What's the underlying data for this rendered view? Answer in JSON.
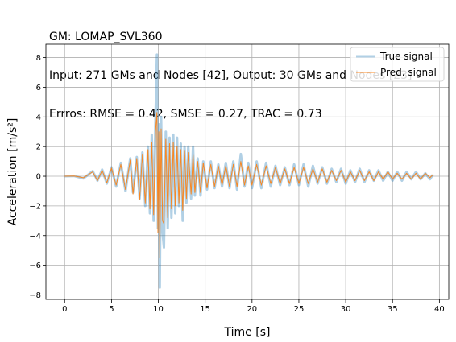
{
  "chart_data": {
    "type": "line",
    "title_lines": [
      "GM: LOMAP_SVL360",
      "Input: 271 GMs and Nodes [42], Output: 30 GMs and Nodes [23]",
      "Errros: RMSE = 0.42, SMSE = 0.27, TRAC = 0.73"
    ],
    "xlabel": "Time [s]",
    "ylabel": "Acceleration [m/s²]",
    "xlim": [
      -2,
      41
    ],
    "ylim": [
      -8.3,
      8.9
    ],
    "xticks": [
      0,
      5,
      10,
      15,
      20,
      25,
      30,
      35,
      40
    ],
    "yticks": [
      -8,
      -6,
      -4,
      -2,
      0,
      2,
      4,
      6,
      8
    ],
    "grid": true,
    "legend_position": "top-right",
    "series": [
      {
        "name": "True signal",
        "color": "#1f77b4",
        "points": [
          [
            0,
            0
          ],
          [
            1,
            0.02
          ],
          [
            2,
            -0.15
          ],
          [
            3,
            0.35
          ],
          [
            3.5,
            -0.3
          ],
          [
            4,
            0.45
          ],
          [
            4.5,
            -0.5
          ],
          [
            5,
            0.6
          ],
          [
            5.5,
            -0.7
          ],
          [
            6,
            0.9
          ],
          [
            6.5,
            -1.0
          ],
          [
            7,
            1.2
          ],
          [
            7.3,
            -1.1
          ],
          [
            7.7,
            1.3
          ],
          [
            8,
            -1.5
          ],
          [
            8.3,
            1.6
          ],
          [
            8.6,
            -2.0
          ],
          [
            8.9,
            2.0
          ],
          [
            9.1,
            -2.5
          ],
          [
            9.3,
            2.8
          ],
          [
            9.5,
            -3.0
          ],
          [
            9.7,
            3.8
          ],
          [
            9.85,
            8.2
          ],
          [
            9.95,
            -3.5
          ],
          [
            10.05,
            3.5
          ],
          [
            10.15,
            -7.5
          ],
          [
            10.3,
            4.0
          ],
          [
            10.45,
            -3.8
          ],
          [
            10.6,
            -4.8
          ],
          [
            10.8,
            3.0
          ],
          [
            11,
            -3.5
          ],
          [
            11.2,
            2.6
          ],
          [
            11.4,
            -2.8
          ],
          [
            11.6,
            2.8
          ],
          [
            11.8,
            -2.5
          ],
          [
            12,
            2.6
          ],
          [
            12.2,
            -2.0
          ],
          [
            12.4,
            2.2
          ],
          [
            12.6,
            -3.0
          ],
          [
            12.8,
            2.0
          ],
          [
            13,
            -1.8
          ],
          [
            13.2,
            2.0
          ],
          [
            13.5,
            -1.5
          ],
          [
            13.7,
            2.0
          ],
          [
            13.9,
            -1.3
          ],
          [
            14.2,
            1.2
          ],
          [
            14.5,
            -1.3
          ],
          [
            14.8,
            1.0
          ],
          [
            15.2,
            -0.9
          ],
          [
            15.6,
            1.0
          ],
          [
            16,
            -0.8
          ],
          [
            16.4,
            0.8
          ],
          [
            16.8,
            -0.7
          ],
          [
            17.2,
            0.9
          ],
          [
            17.6,
            -0.8
          ],
          [
            18,
            1.0
          ],
          [
            18.4,
            -0.9
          ],
          [
            18.8,
            1.5
          ],
          [
            19.2,
            -0.7
          ],
          [
            19.6,
            0.9
          ],
          [
            20,
            -0.8
          ],
          [
            20.5,
            1.0
          ],
          [
            21,
            -0.8
          ],
          [
            21.5,
            0.9
          ],
          [
            22,
            -0.7
          ],
          [
            22.5,
            0.7
          ],
          [
            23,
            -0.6
          ],
          [
            23.5,
            0.6
          ],
          [
            24,
            -0.6
          ],
          [
            24.5,
            0.8
          ],
          [
            25,
            -0.6
          ],
          [
            25.5,
            0.8
          ],
          [
            26,
            -0.7
          ],
          [
            26.5,
            0.7
          ],
          [
            27,
            -0.5
          ],
          [
            27.5,
            0.6
          ],
          [
            28,
            -0.5
          ],
          [
            28.5,
            0.5
          ],
          [
            29,
            -0.4
          ],
          [
            29.5,
            0.5
          ],
          [
            30,
            -0.5
          ],
          [
            30.5,
            0.4
          ],
          [
            31,
            -0.4
          ],
          [
            31.5,
            0.5
          ],
          [
            32,
            -0.4
          ],
          [
            32.5,
            0.4
          ],
          [
            33,
            -0.3
          ],
          [
            33.5,
            0.4
          ],
          [
            34,
            -0.3
          ],
          [
            34.5,
            0.3
          ],
          [
            35,
            -0.3
          ],
          [
            35.5,
            0.3
          ],
          [
            36,
            -0.3
          ],
          [
            36.5,
            0.3
          ],
          [
            37,
            -0.2
          ],
          [
            37.5,
            0.3
          ],
          [
            38,
            -0.2
          ],
          [
            38.5,
            0.2
          ],
          [
            39,
            -0.2
          ],
          [
            39.3,
            0.1
          ]
        ]
      },
      {
        "name": "Pred. signal",
        "color": "#ff7f0e",
        "points": [
          [
            0,
            0
          ],
          [
            1,
            0.02
          ],
          [
            2,
            -0.1
          ],
          [
            3,
            0.3
          ],
          [
            3.5,
            -0.3
          ],
          [
            4,
            0.4
          ],
          [
            4.5,
            -0.45
          ],
          [
            5,
            0.55
          ],
          [
            5.5,
            -0.6
          ],
          [
            6,
            0.8
          ],
          [
            6.5,
            -0.9
          ],
          [
            7,
            1.1
          ],
          [
            7.3,
            -1.2
          ],
          [
            7.7,
            1.2
          ],
          [
            8,
            -1.6
          ],
          [
            8.3,
            1.5
          ],
          [
            8.6,
            -1.8
          ],
          [
            8.9,
            1.8
          ],
          [
            9.1,
            -2.2
          ],
          [
            9.3,
            2.3
          ],
          [
            9.5,
            -2.6
          ],
          [
            9.7,
            3.0
          ],
          [
            9.85,
            4.3
          ],
          [
            9.95,
            -3.8
          ],
          [
            10.05,
            3.0
          ],
          [
            10.15,
            -5.5
          ],
          [
            10.3,
            3.2
          ],
          [
            10.45,
            -3.0
          ],
          [
            10.6,
            -3.2
          ],
          [
            10.8,
            2.5
          ],
          [
            11,
            -2.8
          ],
          [
            11.2,
            2.2
          ],
          [
            11.4,
            -2.2
          ],
          [
            11.6,
            2.3
          ],
          [
            11.8,
            -2.0
          ],
          [
            12,
            2.0
          ],
          [
            12.2,
            -1.8
          ],
          [
            12.4,
            1.8
          ],
          [
            12.6,
            -2.3
          ],
          [
            12.8,
            1.7
          ],
          [
            13,
            -1.5
          ],
          [
            13.2,
            1.6
          ],
          [
            13.5,
            -1.2
          ],
          [
            13.7,
            1.5
          ],
          [
            13.9,
            -1.1
          ],
          [
            14.2,
            1.0
          ],
          [
            14.5,
            -1.1
          ],
          [
            14.8,
            0.9
          ],
          [
            15.2,
            -0.8
          ],
          [
            15.6,
            0.8
          ],
          [
            16,
            -0.7
          ],
          [
            16.4,
            0.7
          ],
          [
            16.8,
            -0.6
          ],
          [
            17.2,
            0.7
          ],
          [
            17.6,
            -0.7
          ],
          [
            18,
            0.8
          ],
          [
            18.4,
            -0.7
          ],
          [
            18.8,
            1.0
          ],
          [
            19.2,
            -0.6
          ],
          [
            19.6,
            0.7
          ],
          [
            20,
            -0.6
          ],
          [
            20.5,
            0.8
          ],
          [
            21,
            -0.6
          ],
          [
            21.5,
            0.7
          ],
          [
            22,
            -0.5
          ],
          [
            22.5,
            0.6
          ],
          [
            23,
            -0.5
          ],
          [
            23.5,
            0.5
          ],
          [
            24,
            -0.5
          ],
          [
            24.5,
            0.6
          ],
          [
            25,
            -0.5
          ],
          [
            25.5,
            0.6
          ],
          [
            26,
            -0.5
          ],
          [
            26.5,
            0.5
          ],
          [
            27,
            -0.4
          ],
          [
            27.5,
            0.5
          ],
          [
            28,
            -0.4
          ],
          [
            28.5,
            0.4
          ],
          [
            29,
            -0.3
          ],
          [
            29.5,
            0.4
          ],
          [
            30,
            -0.4
          ],
          [
            30.5,
            0.3
          ],
          [
            31,
            -0.3
          ],
          [
            31.5,
            0.4
          ],
          [
            32,
            -0.3
          ],
          [
            32.5,
            0.3
          ],
          [
            33,
            -0.3
          ],
          [
            33.5,
            0.3
          ],
          [
            34,
            -0.2
          ],
          [
            34.5,
            0.3
          ],
          [
            35,
            -0.2
          ],
          [
            35.5,
            0.2
          ],
          [
            36,
            -0.2
          ],
          [
            36.5,
            0.2
          ],
          [
            37,
            -0.2
          ],
          [
            37.5,
            0.2
          ],
          [
            38,
            -0.2
          ],
          [
            38.5,
            0.2
          ],
          [
            39,
            -0.1
          ],
          [
            39.3,
            0.1
          ]
        ]
      }
    ]
  }
}
